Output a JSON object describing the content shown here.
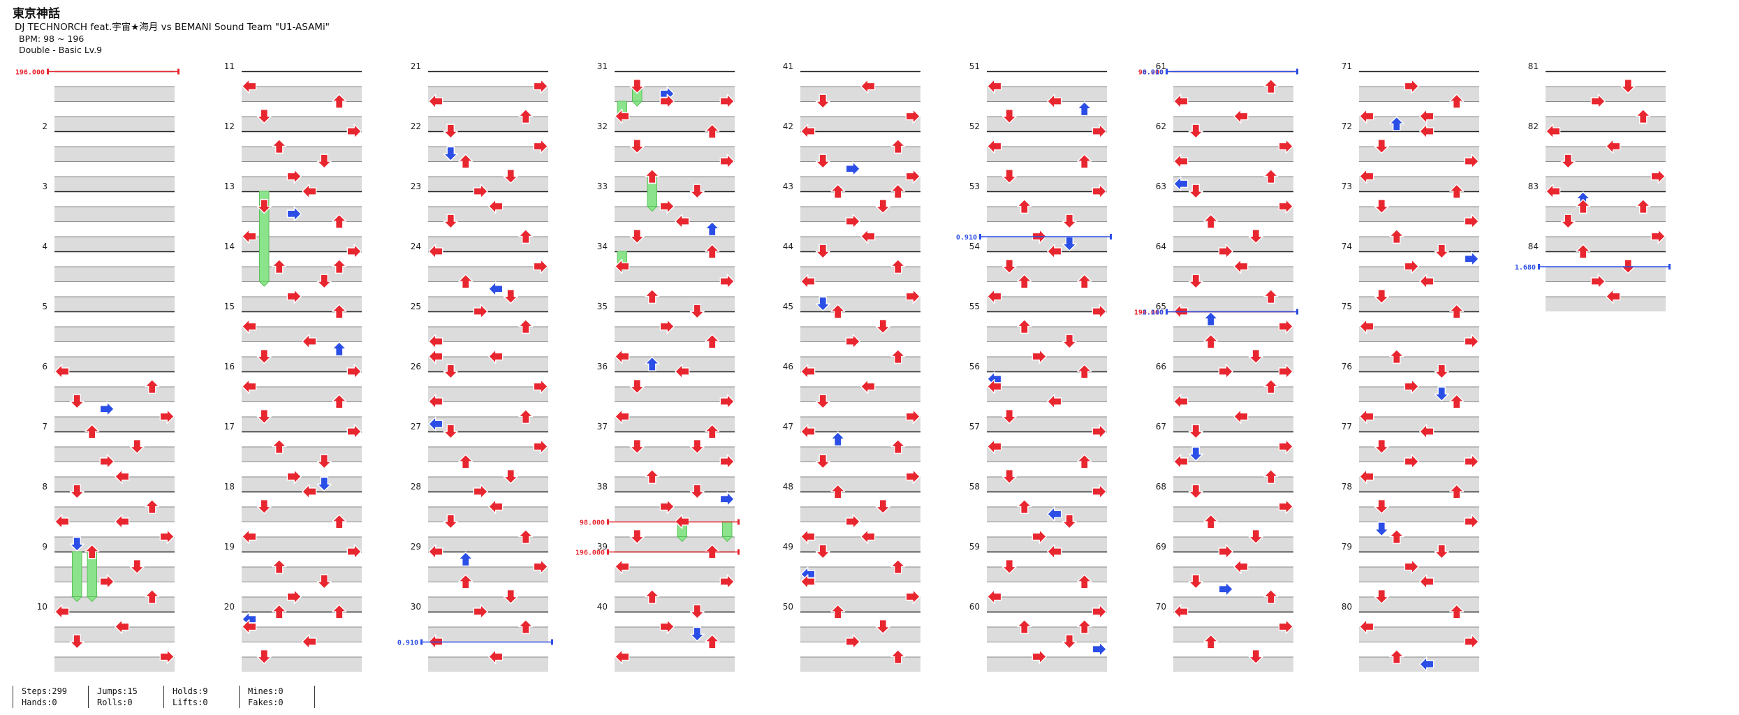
{
  "song": {
    "title": "東京神話",
    "artist": "DJ TECHNORCH feat.宇宙★海月 vs BEMANI Sound Team \"U1-ASAMi\"",
    "bpm": "BPM: 98 ~ 196",
    "difficulty": "Double - Basic  Lv.9"
  },
  "chart_data": {
    "type": "table",
    "measure_numbers": [
      "2",
      "3",
      "4",
      "5",
      "6",
      "7",
      "8",
      "9",
      "10",
      "11",
      "12",
      "13",
      "14",
      "15",
      "16",
      "17",
      "18",
      "19",
      "20",
      "21",
      "22",
      "23",
      "24",
      "25",
      "26",
      "27",
      "28",
      "29",
      "30",
      "31",
      "32",
      "33",
      "34",
      "35",
      "36",
      "37",
      "38",
      "39",
      "40",
      "41",
      "42",
      "43",
      "44",
      "45",
      "46",
      "47",
      "48",
      "49",
      "50",
      "51",
      "52",
      "53",
      "54",
      "55",
      "56",
      "57",
      "58",
      "59",
      "60",
      "61",
      "62",
      "63",
      "64",
      "65",
      "66",
      "67",
      "68",
      "69",
      "70",
      "71",
      "72",
      "73",
      "74",
      "75",
      "76",
      "77",
      "78",
      "79",
      "80",
      "81",
      "82",
      "83",
      "84"
    ],
    "bpm_changes": [
      {
        "beat": 0,
        "label": "196.000",
        "color": "#e8262f"
      },
      {
        "beat": 150,
        "label": "98.000",
        "color": "#e8262f"
      },
      {
        "beat": 152,
        "label": "196.000",
        "color": "#e8262f"
      },
      {
        "beat": 240,
        "label": "98.000",
        "color": "#e8262f"
      },
      {
        "beat": 256,
        "label": "196.000",
        "color": "#e8262f"
      }
    ],
    "stops": [
      {
        "beat": 118,
        "label": "0.910",
        "color": "#2b4ee6"
      },
      {
        "beat": 211,
        "label": "0.910",
        "color": "#2b4ee6"
      },
      {
        "beat": 240,
        "label": "0.910",
        "color": "#2b4ee6"
      },
      {
        "beat": 256,
        "label": "2.140",
        "color": "#2b4ee6"
      },
      {
        "beat": 333,
        "label": "1.680",
        "color": "#2b4ee6"
      }
    ]
  },
  "stats": {
    "steps": "Steps:299",
    "hands": "Hands:0",
    "jumps": "Jumps:15",
    "rolls": "Rolls:0",
    "holds": "Holds:9",
    "lifts": "Lifts:0",
    "mines": "Mines:0",
    "fakes": "Fakes:0"
  },
  "colors": {
    "quarter": "#e8262f",
    "eighth": "#2b4ee6",
    "hold": "#8be48b",
    "band": "#dcdcdc"
  }
}
